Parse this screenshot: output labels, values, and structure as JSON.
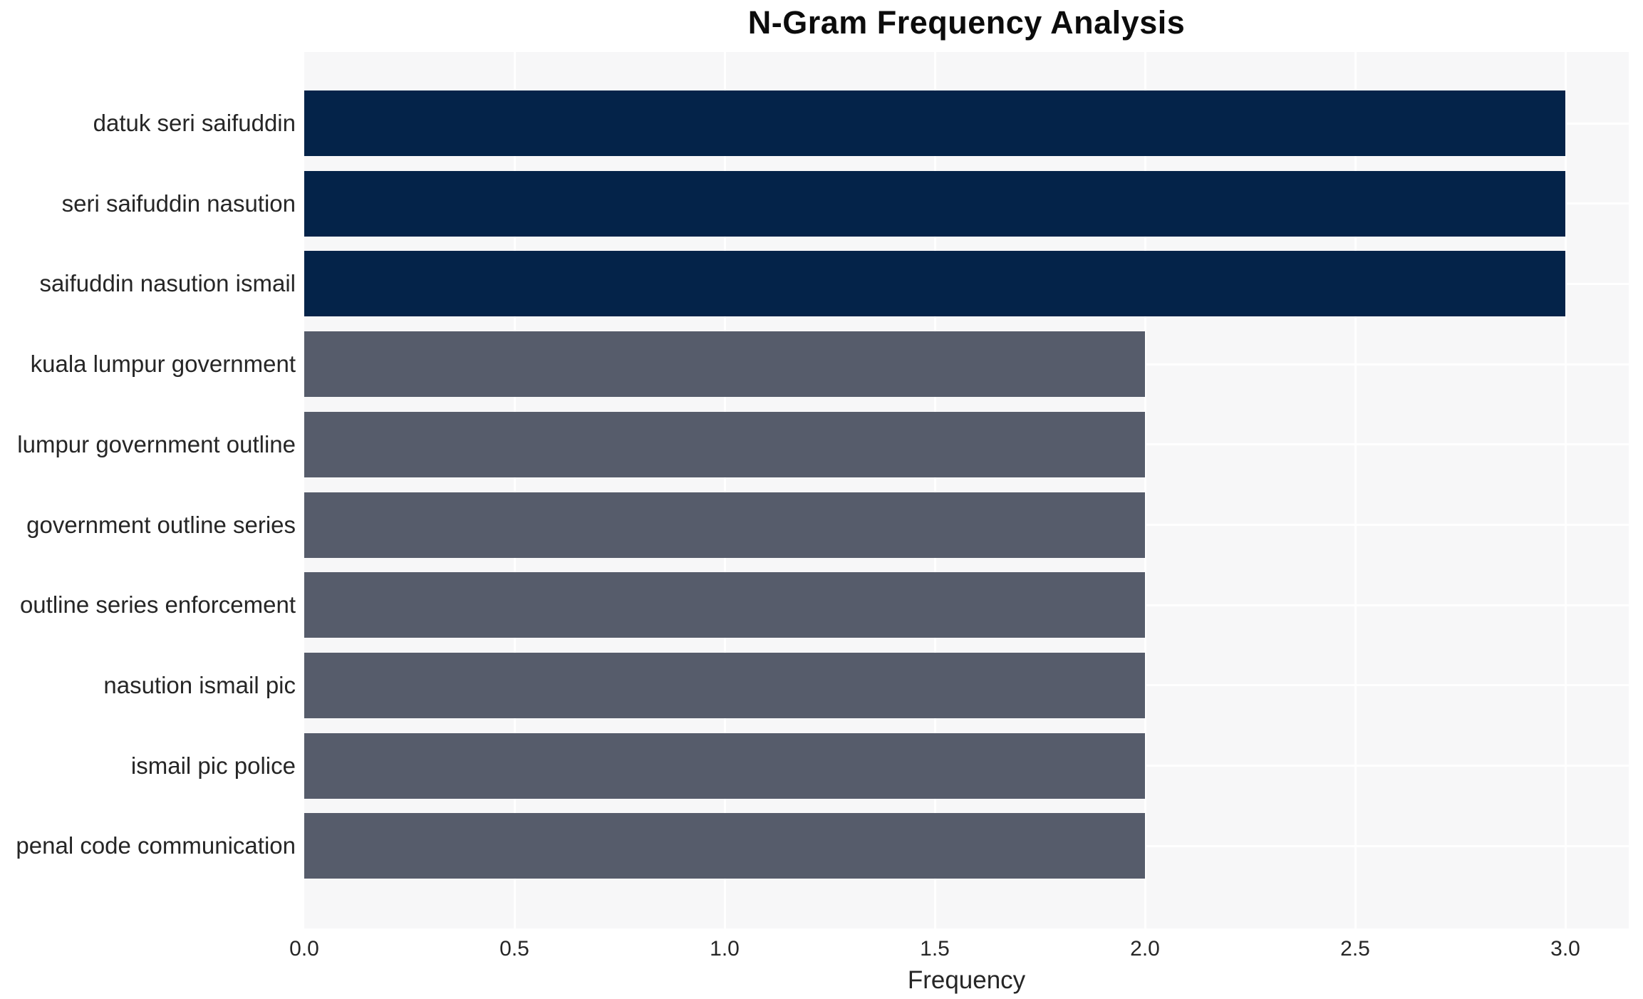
{
  "chart_data": {
    "type": "bar",
    "orientation": "horizontal",
    "title": "N-Gram Frequency Analysis",
    "xlabel": "Frequency",
    "ylabel": "",
    "categories": [
      "datuk seri saifuddin",
      "seri saifuddin nasution",
      "saifuddin nasution ismail",
      "kuala lumpur government",
      "lumpur government outline",
      "government outline series",
      "outline series enforcement",
      "nasution ismail pic",
      "ismail pic police",
      "penal code communication"
    ],
    "values": [
      3,
      3,
      3,
      2,
      2,
      2,
      2,
      2,
      2,
      2
    ],
    "bar_colors": [
      "#042349",
      "#042349",
      "#042349",
      "#565c6b",
      "#565c6b",
      "#565c6b",
      "#565c6b",
      "#565c6b",
      "#565c6b",
      "#565c6b"
    ],
    "xlim": [
      0,
      3.15
    ],
    "xticks": [
      0,
      0.5,
      1,
      1.5,
      2,
      2.5,
      3
    ],
    "xtick_labels": [
      "0.0",
      "0.5",
      "1.0",
      "1.5",
      "2.0",
      "2.5",
      "3.0"
    ],
    "grid": true,
    "legend": "none",
    "colors": {
      "bar_primary": "#042349",
      "bar_secondary": "#565c6b",
      "plot_background": "#f7f7f8",
      "gridline": "#ffffff",
      "tick_text": "#262626",
      "title_text": "#0c0c0c",
      "page_background": "#ffffff"
    }
  }
}
